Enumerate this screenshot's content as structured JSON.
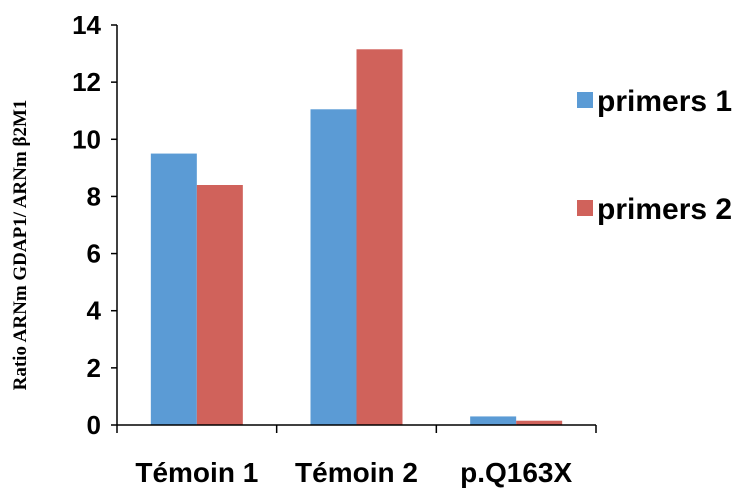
{
  "chart_data": {
    "type": "bar",
    "categories": [
      "Témoin 1",
      "Témoin 2",
      "p.Q163X"
    ],
    "series": [
      {
        "name": "primers 1",
        "color": "#5b9bd5",
        "values": [
          9.5,
          11.05,
          0.3
        ]
      },
      {
        "name": "primers 2",
        "color": "#d0625b",
        "values": [
          8.4,
          13.15,
          0.15
        ]
      }
    ],
    "title": "",
    "xlabel": "",
    "ylabel": "Ratio ARNm GDAP1/ ARNm β2M1",
    "ylim": [
      0,
      14
    ],
    "yticks": [
      0,
      2,
      4,
      6,
      8,
      10,
      12,
      14
    ],
    "grid": false,
    "legend": "right"
  }
}
